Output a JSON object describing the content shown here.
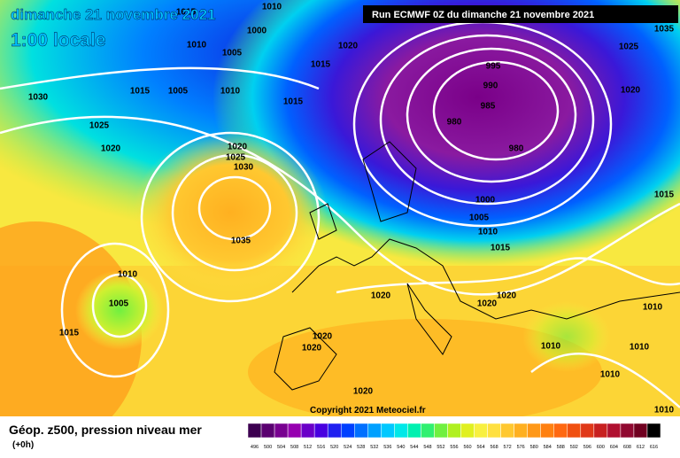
{
  "header": {
    "date": "dimanche 21 novembre 2021",
    "time": "1:00 locale",
    "run": "Run ECMWF 0Z du dimanche 21 novembre 2021"
  },
  "copyright": "Copyright 2021 Meteociel.fr",
  "footer": {
    "title": "Géop. z500, pression niveau mer",
    "lead": "(+0h)"
  },
  "isobar_labels": [
    "1015",
    "1010",
    "1000",
    "1010",
    "1005",
    "1015",
    "1020",
    "1025",
    "1035",
    "1015",
    "1005",
    "1010",
    "1015",
    "995",
    "990",
    "985",
    "980",
    "980",
    "1020",
    "1030",
    "1025",
    "1020",
    "1020",
    "1025",
    "1030",
    "1015",
    "1000",
    "1005",
    "1010",
    "1015",
    "1035",
    "1010",
    "1005",
    "1015",
    "1020",
    "1020",
    "1020",
    "1010",
    "1020",
    "1020",
    "1010",
    "1010",
    "1010",
    "1020",
    "1010"
  ],
  "scale": {
    "labels": [
      "496",
      "500",
      "504",
      "508",
      "512",
      "516",
      "520",
      "524",
      "528",
      "532",
      "536",
      "540",
      "544",
      "548",
      "552",
      "556",
      "560",
      "564",
      "568",
      "572",
      "576",
      "580",
      "584",
      "588",
      "592",
      "596",
      "600",
      "604",
      "608",
      "612",
      "616"
    ],
    "colors": [
      "#3c0050",
      "#5a0070",
      "#780090",
      "#9600b0",
      "#6a00c8",
      "#4800e0",
      "#2020f0",
      "#0040ff",
      "#0070ff",
      "#00a0ff",
      "#00c8ff",
      "#00e8e8",
      "#00f0b0",
      "#30f070",
      "#70f040",
      "#b0f020",
      "#e0f020",
      "#f8f040",
      "#ffe040",
      "#ffc830",
      "#ffb020",
      "#ff9818",
      "#ff8010",
      "#ff6810",
      "#f05010",
      "#e03818",
      "#c82020",
      "#b01030",
      "#900830",
      "#700020",
      "#000000"
    ]
  }
}
